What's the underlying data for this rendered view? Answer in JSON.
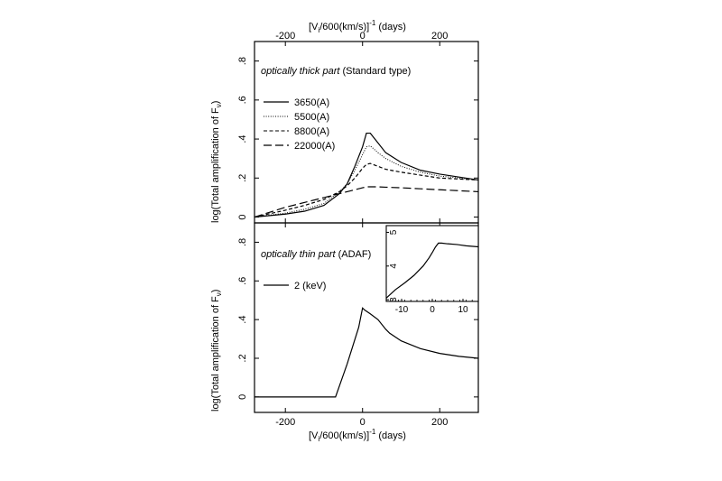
{
  "figure": {
    "top_axis_label": "[V",
    "top_axis_label_sub": "i",
    "top_axis_label_mid": "/600(km/s)]",
    "top_axis_label_sup": "-1",
    "top_axis_label_end": " (days)",
    "bottom_axis_label": "[V",
    "bottom_axis_label_sub": "i",
    "bottom_axis_label_mid": "/600(km/s)]",
    "bottom_axis_label_sup": "-1",
    "bottom_axis_label_end": " (days)"
  },
  "chart_data": [
    {
      "type": "line",
      "panel": "top",
      "title_italic": "optically thick part",
      "title_plain": " (Standard type)",
      "ylabel": "log(Total amplification of F",
      "ylabel_sub": "ν",
      "ylabel_end": ")",
      "xlim": [
        -280,
        300
      ],
      "ylim": [
        -0.03,
        0.9
      ],
      "xticks": [
        -200,
        0,
        200
      ],
      "yticks": [
        0,
        0.2,
        0.4,
        0.6,
        0.8
      ],
      "ytick_labels": [
        "0",
        ".2",
        ".4",
        ".6",
        ".8"
      ],
      "legend_position": "top-left",
      "series": [
        {
          "name": "3650(A)",
          "style": "solid",
          "x": [
            -280,
            -200,
            -150,
            -100,
            -60,
            -40,
            -20,
            0,
            10,
            20,
            40,
            60,
            100,
            150,
            200,
            250,
            300
          ],
          "y": [
            0.0,
            0.015,
            0.03,
            0.06,
            0.12,
            0.17,
            0.26,
            0.36,
            0.43,
            0.43,
            0.38,
            0.33,
            0.28,
            0.24,
            0.22,
            0.205,
            0.19
          ]
        },
        {
          "name": "5500(A)",
          "style": "dotted",
          "x": [
            -280,
            -200,
            -150,
            -100,
            -60,
            -40,
            -20,
            0,
            10,
            20,
            40,
            60,
            100,
            150,
            200,
            250,
            300
          ],
          "y": [
            0.0,
            0.02,
            0.04,
            0.07,
            0.13,
            0.17,
            0.24,
            0.32,
            0.36,
            0.365,
            0.33,
            0.3,
            0.26,
            0.23,
            0.21,
            0.2,
            0.19
          ]
        },
        {
          "name": "8800(A)",
          "style": "dashed",
          "x": [
            -280,
            -200,
            -150,
            -100,
            -60,
            -40,
            -20,
            0,
            10,
            20,
            40,
            60,
            100,
            150,
            200,
            250,
            300
          ],
          "y": [
            0.0,
            0.035,
            0.06,
            0.09,
            0.13,
            0.16,
            0.2,
            0.25,
            0.27,
            0.275,
            0.26,
            0.245,
            0.23,
            0.215,
            0.2,
            0.195,
            0.19
          ]
        },
        {
          "name": "22000(A)",
          "style": "longdash",
          "x": [
            -280,
            -200,
            -150,
            -100,
            -60,
            -40,
            -20,
            0,
            10,
            20,
            40,
            60,
            100,
            150,
            200,
            250,
            300
          ],
          "y": [
            0.0,
            0.05,
            0.075,
            0.1,
            0.12,
            0.13,
            0.14,
            0.15,
            0.155,
            0.155,
            0.155,
            0.153,
            0.15,
            0.145,
            0.14,
            0.135,
            0.13
          ]
        }
      ]
    },
    {
      "type": "line",
      "panel": "bottom",
      "title_italic": "optically thin part",
      "title_plain": " (ADAF)",
      "ylabel": "log(Total amplification of F",
      "ylabel_sub": "ν",
      "ylabel_end": ")",
      "xlabel": "[Vi/600(km/s)]-1 (days)",
      "xlim": [
        -280,
        300
      ],
      "ylim": [
        -0.08,
        0.9
      ],
      "xticks": [
        -200,
        0,
        200
      ],
      "yticks": [
        0,
        0.2,
        0.4,
        0.6,
        0.8
      ],
      "ytick_labels": [
        "0",
        ".2",
        ".4",
        ".6",
        ".8"
      ],
      "legend_position": "top-left",
      "series": [
        {
          "name": "2 (keV)",
          "style": "solid",
          "x": [
            -280,
            -75,
            -70,
            -40,
            -10,
            0,
            5,
            20,
            40,
            60,
            70,
            100,
            150,
            200,
            250,
            300
          ],
          "y": [
            0.0,
            0.0,
            0.0,
            0.17,
            0.36,
            0.46,
            0.45,
            0.43,
            0.4,
            0.35,
            0.33,
            0.29,
            0.25,
            0.225,
            0.21,
            0.2
          ]
        }
      ]
    },
    {
      "type": "line",
      "panel": "inset",
      "xlim": [
        -15,
        15
      ],
      "ylim": [
        2.95,
        5.2
      ],
      "xticks": [
        -10,
        0,
        10
      ],
      "yticks": [
        3,
        4,
        5
      ],
      "ytick_labels": [
        "3",
        "4",
        "5"
      ],
      "series": [
        {
          "name": "",
          "style": "solid",
          "x": [
            -15,
            -12,
            -9,
            -6,
            -3,
            -1,
            0,
            1,
            2,
            3,
            5,
            8,
            11,
            15
          ],
          "y": [
            3.05,
            3.3,
            3.5,
            3.72,
            4.0,
            4.25,
            4.4,
            4.56,
            4.68,
            4.68,
            4.66,
            4.64,
            4.6,
            4.57
          ]
        }
      ]
    }
  ]
}
